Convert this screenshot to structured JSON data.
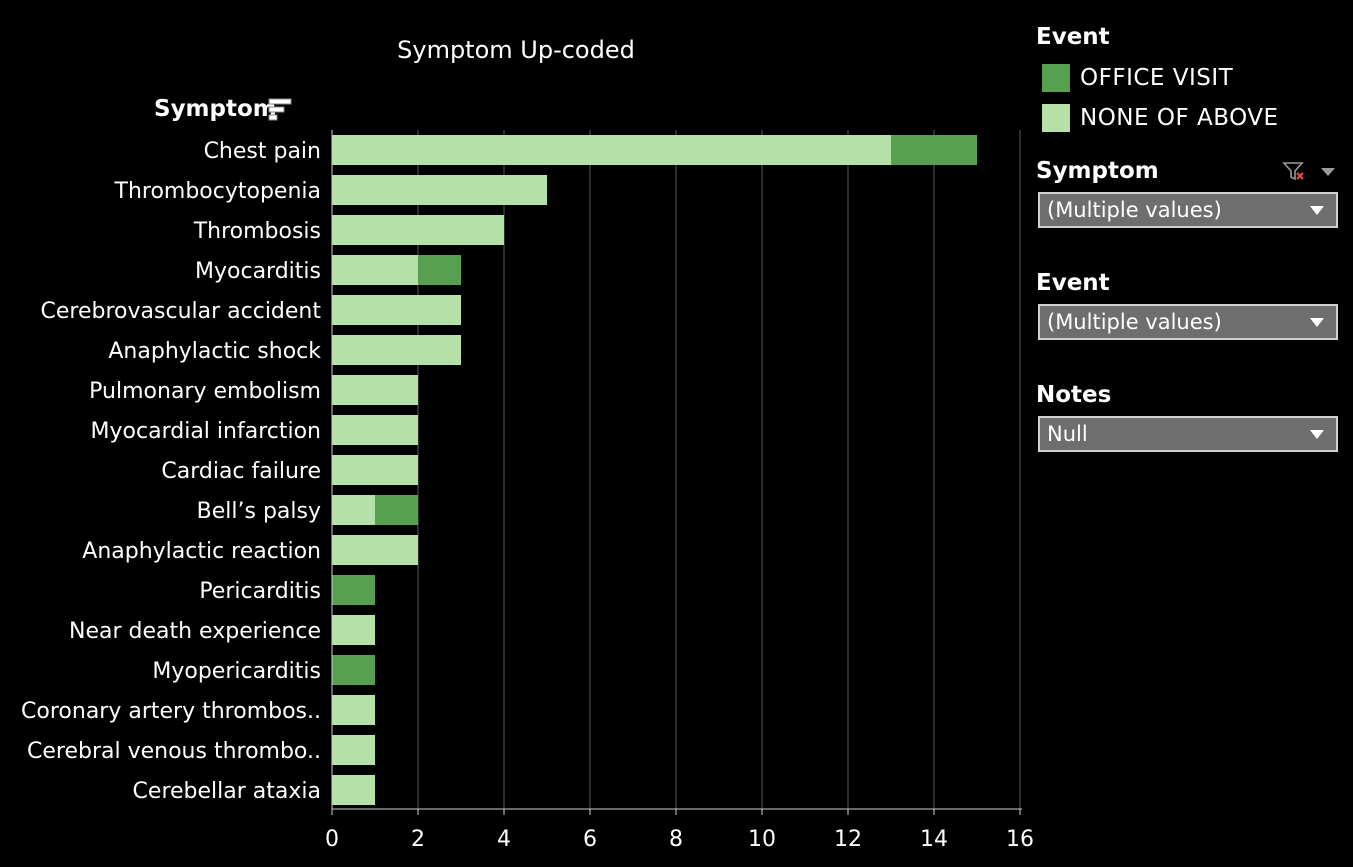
{
  "chart_data": {
    "type": "bar",
    "orientation": "horizontal",
    "stacked": true,
    "title": "Symptom Up-coded",
    "row_header": "Symptom",
    "categories": [
      "Chest pain",
      "Thrombocytopenia",
      "Thrombosis",
      "Myocarditis",
      "Cerebrovascular accident",
      "Anaphylactic shock",
      "Pulmonary embolism",
      "Myocardial infarction",
      "Cardiac failure",
      "Bell’s palsy",
      "Anaphylactic reaction",
      "Pericarditis",
      "Near death experience",
      "Myopericarditis",
      "Coronary artery thrombos..",
      "Cerebral venous thrombo..",
      "Cerebellar ataxia"
    ],
    "series": [
      {
        "name": "NONE OF ABOVE",
        "color": "#b5e0a8",
        "values": [
          13,
          5,
          4,
          2,
          3,
          3,
          2,
          2,
          2,
          1,
          2,
          0,
          1,
          0,
          1,
          1,
          1
        ]
      },
      {
        "name": "OFFICE VISIT",
        "color": "#57a04f",
        "values": [
          2,
          0,
          0,
          1,
          0,
          0,
          0,
          0,
          0,
          1,
          0,
          1,
          0,
          1,
          0,
          0,
          0
        ]
      }
    ],
    "xlim": [
      0,
      16
    ],
    "xticks": [
      0,
      2,
      4,
      6,
      8,
      10,
      12,
      14,
      16
    ],
    "grid": "vertical",
    "legend": "right"
  },
  "legend": {
    "title": "Event",
    "items": [
      {
        "label": "OFFICE VISIT",
        "color": "#57a04f"
      },
      {
        "label": "NONE OF ABOVE",
        "color": "#b5e0a8"
      }
    ]
  },
  "filters": [
    {
      "title": "Symptom",
      "value": "(Multiple values)"
    },
    {
      "title": "Event",
      "value": "(Multiple values)"
    },
    {
      "title": "Notes",
      "value": "Null"
    }
  ]
}
